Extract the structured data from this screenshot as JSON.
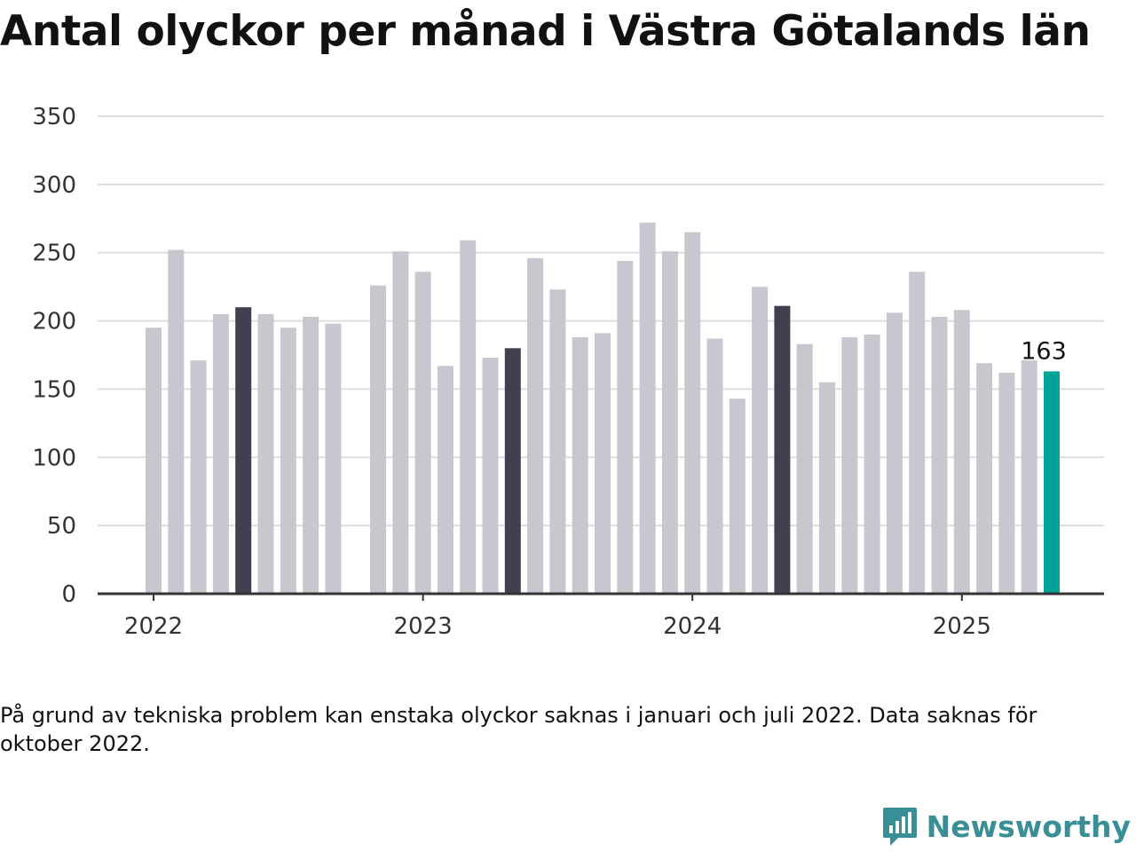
{
  "title": "Antal olyckor per månad i Västra Götalands län",
  "note": "På grund av tekniska problem kan enstaka olyckor saknas i januari och juli 2022. Data saknas för oktober 2022.",
  "brand": {
    "name": "Newsworthy",
    "icon": "chart-bubble-logo-icon",
    "color": "#3a8f96"
  },
  "chart_data": {
    "type": "bar",
    "x": [
      "2022-01",
      "2022-02",
      "2022-03",
      "2022-04",
      "2022-05",
      "2022-06",
      "2022-07",
      "2022-08",
      "2022-09",
      "2022-10",
      "2022-11",
      "2022-12",
      "2023-01",
      "2023-02",
      "2023-03",
      "2023-04",
      "2023-05",
      "2023-06",
      "2023-07",
      "2023-08",
      "2023-09",
      "2023-10",
      "2023-11",
      "2023-12",
      "2024-01",
      "2024-02",
      "2024-03",
      "2024-04",
      "2024-05",
      "2024-06",
      "2024-07",
      "2024-08",
      "2024-09",
      "2024-10",
      "2024-11",
      "2024-12",
      "2025-01",
      "2025-02",
      "2025-03",
      "2025-04",
      "2025-05"
    ],
    "values": [
      195,
      252,
      171,
      205,
      210,
      205,
      195,
      203,
      198,
      null,
      226,
      251,
      236,
      167,
      259,
      173,
      180,
      246,
      223,
      188,
      191,
      244,
      272,
      251,
      265,
      187,
      143,
      225,
      211,
      183,
      155,
      188,
      190,
      206,
      236,
      203,
      208,
      169,
      162,
      171,
      163
    ],
    "ylim": [
      0,
      350
    ],
    "yticks": [
      0,
      50,
      100,
      150,
      200,
      250,
      300,
      350
    ],
    "xticks": [
      {
        "x": "2022-01",
        "label": "2022"
      },
      {
        "x": "2023-01",
        "label": "2023"
      },
      {
        "x": "2024-01",
        "label": "2024"
      },
      {
        "x": "2025-01",
        "label": "2025"
      }
    ],
    "highlight_months": [
      "2022-05",
      "2023-05",
      "2024-05"
    ],
    "latest": {
      "x": "2025-05",
      "label": "163"
    },
    "grid": true,
    "colors": {
      "default": "#c8c7cf",
      "highlight": "#404050",
      "latest": "#00a396",
      "grid": "#dddddd",
      "axis": "#333333"
    }
  }
}
